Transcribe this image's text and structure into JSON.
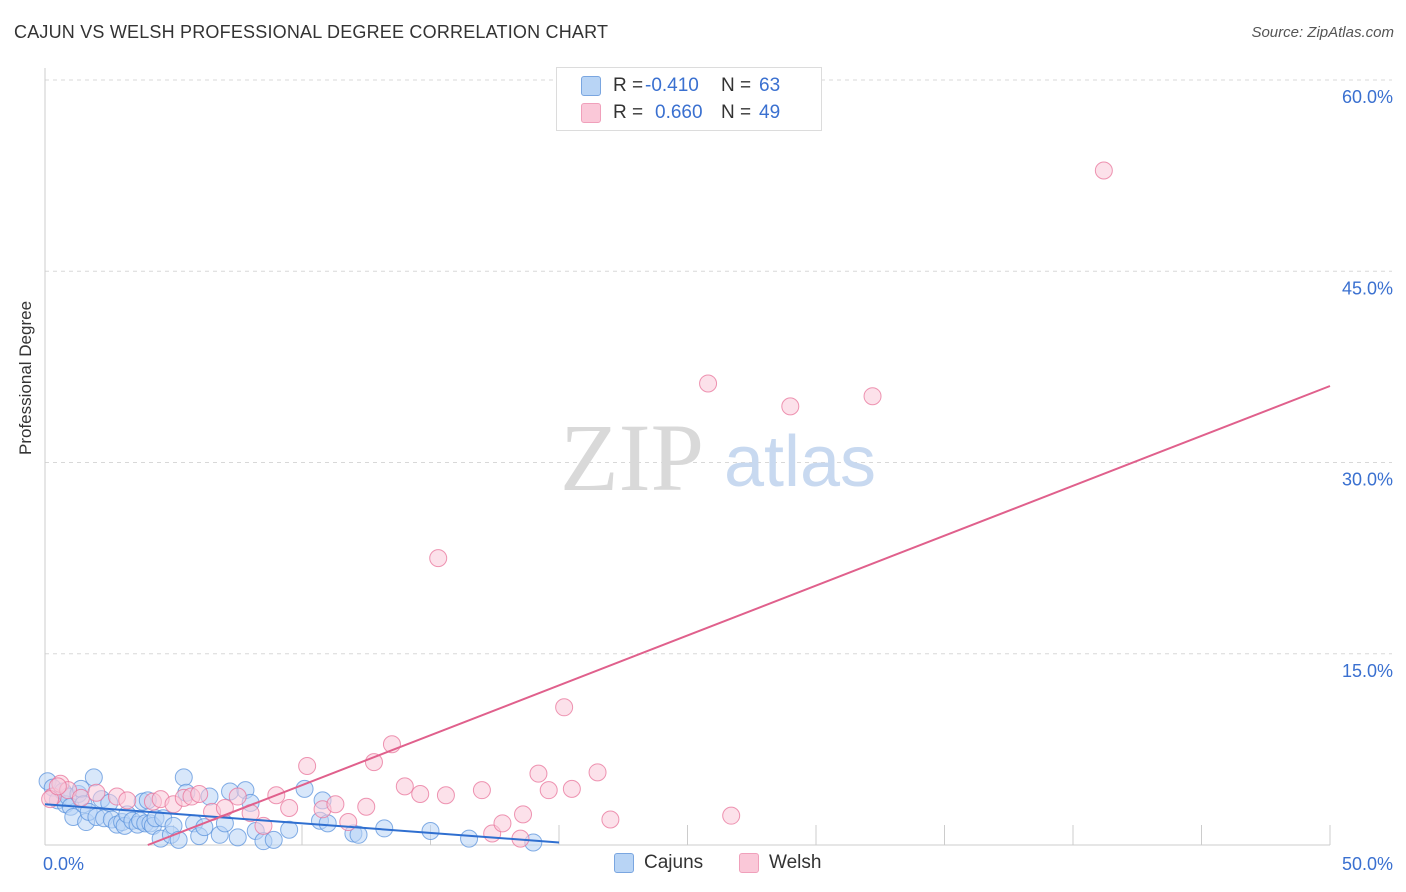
{
  "title": "CAJUN VS WELSH PROFESSIONAL DEGREE CORRELATION CHART",
  "source": "Source: ZipAtlas.com",
  "watermark": {
    "zip": "ZIP",
    "atlas": "atlas"
  },
  "legend": {
    "r_label": "R =",
    "n_label": "N =",
    "rows": [
      {
        "series": "Cajuns",
        "r": "-0.410",
        "n": "63",
        "fill": "#b8d4f5",
        "stroke": "#7aa6e0"
      },
      {
        "series": "Welsh",
        "r": "0.660",
        "n": "49",
        "fill": "#fac8d8",
        "stroke": "#f0a0bb"
      }
    ]
  },
  "bottom_legend": [
    "Cajuns",
    "Welsh"
  ],
  "chart_data": {
    "type": "scatter",
    "title": "CAJUN VS WELSH PROFESSIONAL DEGREE CORRELATION CHART",
    "xlabel": "",
    "ylabel": "Professional Degree",
    "xlim": [
      0,
      50
    ],
    "ylim": [
      0,
      60
    ],
    "x_tick_labels": [
      {
        "value": 0,
        "label": "0.0%"
      },
      {
        "value": 50,
        "label": "50.0%"
      }
    ],
    "y_tick_labels": [
      {
        "value": 15,
        "label": "15.0%"
      },
      {
        "value": 30,
        "label": "30.0%"
      },
      {
        "value": 45,
        "label": "45.0%"
      },
      {
        "value": 60,
        "label": "60.0%"
      }
    ],
    "grid": true,
    "legend_position": "top-center",
    "series": [
      {
        "name": "Cajuns",
        "color": "#5b93dc",
        "fill": "#b8d4f5",
        "trendline": {
          "x0": 0,
          "y0": 3.2,
          "x1": 20,
          "y1": 0.2,
          "color": "#2f6fd0"
        },
        "points": [
          [
            0.1,
            5.0
          ],
          [
            0.3,
            4.5
          ],
          [
            0.5,
            3.5
          ],
          [
            0.7,
            4.2
          ],
          [
            0.8,
            3.2
          ],
          [
            0.9,
            3.8
          ],
          [
            1.0,
            3.0
          ],
          [
            1.1,
            2.2
          ],
          [
            1.3,
            4.0
          ],
          [
            1.4,
            4.4
          ],
          [
            1.5,
            3.2
          ],
          [
            1.6,
            1.8
          ],
          [
            1.7,
            2.6
          ],
          [
            1.9,
            5.3
          ],
          [
            2.0,
            2.2
          ],
          [
            2.2,
            3.6
          ],
          [
            2.3,
            2.1
          ],
          [
            2.5,
            3.3
          ],
          [
            2.6,
            2.0
          ],
          [
            2.8,
            1.6
          ],
          [
            3.0,
            1.8
          ],
          [
            3.1,
            1.5
          ],
          [
            3.2,
            2.4
          ],
          [
            3.4,
            1.9
          ],
          [
            3.6,
            1.6
          ],
          [
            3.7,
            1.9
          ],
          [
            3.8,
            3.4
          ],
          [
            3.9,
            1.7
          ],
          [
            4.0,
            3.5
          ],
          [
            4.1,
            1.7
          ],
          [
            4.2,
            1.5
          ],
          [
            4.3,
            2.1
          ],
          [
            4.5,
            0.5
          ],
          [
            4.6,
            2.1
          ],
          [
            4.9,
            0.8
          ],
          [
            5.0,
            1.5
          ],
          [
            5.2,
            0.4
          ],
          [
            5.4,
            5.3
          ],
          [
            5.5,
            4.1
          ],
          [
            5.8,
            1.7
          ],
          [
            6.0,
            0.7
          ],
          [
            6.2,
            1.4
          ],
          [
            6.4,
            3.8
          ],
          [
            6.8,
            0.8
          ],
          [
            7.0,
            1.7
          ],
          [
            7.2,
            4.2
          ],
          [
            7.5,
            0.6
          ],
          [
            7.8,
            4.3
          ],
          [
            8.0,
            3.3
          ],
          [
            8.2,
            1.1
          ],
          [
            8.5,
            0.3
          ],
          [
            8.9,
            0.4
          ],
          [
            9.5,
            1.2
          ],
          [
            10.1,
            4.4
          ],
          [
            10.7,
            1.9
          ],
          [
            10.8,
            3.5
          ],
          [
            11.0,
            1.7
          ],
          [
            12.0,
            0.9
          ],
          [
            12.2,
            0.8
          ],
          [
            13.2,
            1.3
          ],
          [
            15.0,
            1.1
          ],
          [
            16.5,
            0.5
          ],
          [
            19.0,
            0.2
          ]
        ]
      },
      {
        "name": "Welsh",
        "color": "#e8739a",
        "fill": "#fac8d8",
        "trendline": {
          "x0": 4.0,
          "y0": 0.0,
          "x1": 50.0,
          "y1": 36.0,
          "color": "#e0608c"
        },
        "points": [
          [
            0.3,
            3.8
          ],
          [
            0.6,
            4.8
          ],
          [
            0.9,
            4.3
          ],
          [
            1.4,
            3.7
          ],
          [
            2.0,
            4.1
          ],
          [
            2.8,
            3.8
          ],
          [
            3.2,
            3.5
          ],
          [
            4.2,
            3.4
          ],
          [
            4.5,
            3.6
          ],
          [
            5.0,
            3.2
          ],
          [
            5.4,
            3.7
          ],
          [
            5.7,
            3.8
          ],
          [
            6.0,
            4.0
          ],
          [
            6.5,
            2.6
          ],
          [
            7.0,
            2.9
          ],
          [
            7.5,
            3.8
          ],
          [
            8.0,
            2.5
          ],
          [
            8.5,
            1.5
          ],
          [
            9.0,
            3.9
          ],
          [
            9.5,
            2.9
          ],
          [
            10.2,
            6.2
          ],
          [
            10.8,
            2.8
          ],
          [
            11.3,
            3.2
          ],
          [
            11.8,
            1.8
          ],
          [
            12.5,
            3.0
          ],
          [
            12.8,
            6.5
          ],
          [
            13.5,
            7.9
          ],
          [
            14.0,
            4.6
          ],
          [
            14.6,
            4.0
          ],
          [
            15.3,
            22.5
          ],
          [
            15.6,
            3.9
          ],
          [
            17.0,
            4.3
          ],
          [
            17.4,
            0.9
          ],
          [
            17.8,
            1.7
          ],
          [
            18.6,
            2.4
          ],
          [
            19.2,
            5.6
          ],
          [
            19.6,
            4.3
          ],
          [
            20.2,
            10.8
          ],
          [
            20.5,
            4.4
          ],
          [
            21.5,
            5.7
          ],
          [
            22.0,
            2.0
          ],
          [
            25.8,
            36.2
          ],
          [
            26.7,
            2.3
          ],
          [
            29.0,
            34.4
          ],
          [
            32.2,
            35.2
          ],
          [
            41.2,
            52.9
          ],
          [
            0.2,
            3.6
          ],
          [
            0.5,
            4.6
          ],
          [
            18.5,
            0.5
          ]
        ]
      }
    ]
  }
}
